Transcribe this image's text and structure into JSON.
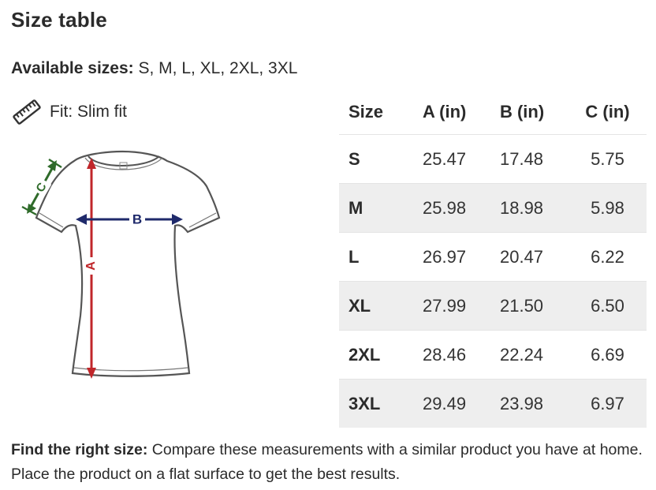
{
  "title": "Size table",
  "available": {
    "label": "Available sizes:",
    "value": " S, M, L, XL, 2XL, 3XL"
  },
  "fit": {
    "icon": "ruler-icon",
    "text": "Fit: Slim fit"
  },
  "diagram": {
    "label_a": "A",
    "label_b": "B",
    "label_c": "C",
    "colors": {
      "a": "#c0262a",
      "b": "#1f2a6b",
      "c": "#2f6b2a"
    }
  },
  "table": {
    "headers": [
      "Size",
      "A (in)",
      "B (in)",
      "C (in)"
    ],
    "rows": [
      [
        "S",
        "25.47",
        "17.48",
        "5.75"
      ],
      [
        "M",
        "25.98",
        "18.98",
        "5.98"
      ],
      [
        "L",
        "26.97",
        "20.47",
        "6.22"
      ],
      [
        "XL",
        "27.99",
        "21.50",
        "6.50"
      ],
      [
        "2XL",
        "28.46",
        "22.24",
        "6.69"
      ],
      [
        "3XL",
        "29.49",
        "23.98",
        "6.97"
      ]
    ]
  },
  "footer": {
    "label": "Find the right size:",
    "text": " Compare these measurements with a similar product you have at home. Place the product on a flat surface to get the best results."
  }
}
